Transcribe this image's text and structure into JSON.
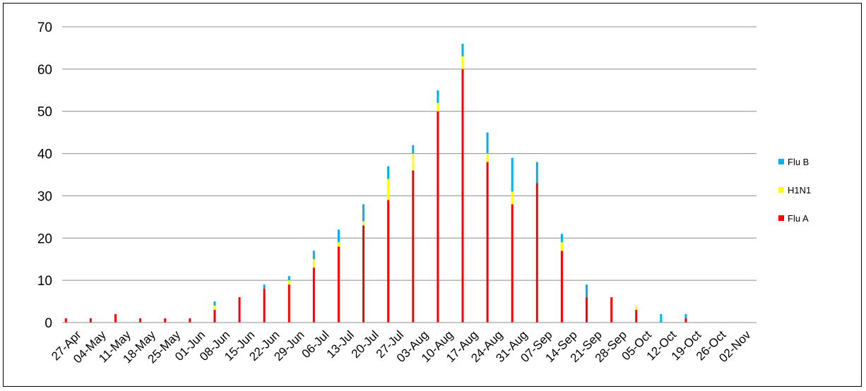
{
  "chart_data": {
    "type": "bar",
    "stacked": true,
    "categories": [
      "27-Apr",
      "04-May",
      "11-May",
      "18-May",
      "25-May",
      "01-Jun",
      "08-Jun",
      "15-Jun",
      "22-Jun",
      "29-Jun",
      "06-Jul",
      "13-Jul",
      "20-Jul",
      "27-Jul",
      "03-Aug",
      "10-Aug",
      "17-Aug",
      "24-Aug",
      "31-Aug",
      "07-Sep",
      "14-Sep",
      "21-Sep",
      "28-Sep",
      "05-Oct",
      "12-Oct",
      "19-Oct",
      "26-Oct",
      "02-Nov"
    ],
    "series": [
      {
        "name": "Flu A",
        "color": "#ff0000",
        "values": [
          1,
          1,
          2,
          1,
          1,
          1,
          3,
          6,
          8,
          9,
          13,
          18,
          23,
          29,
          36,
          50,
          60,
          38,
          28,
          33,
          17,
          6,
          6,
          3,
          0,
          1,
          0,
          0
        ]
      },
      {
        "name": "H1N1",
        "color": "#ffff00",
        "values": [
          0,
          0,
          0,
          0,
          0,
          0,
          1,
          0,
          0,
          1,
          2,
          1,
          1,
          5,
          4,
          2,
          3,
          2,
          3,
          0,
          2,
          0,
          0,
          1,
          0,
          0,
          0,
          0
        ]
      },
      {
        "name": "Flu B",
        "color": "#00b0f0",
        "values": [
          0,
          0,
          0,
          0,
          0,
          0,
          1,
          0,
          1,
          1,
          2,
          3,
          4,
          3,
          2,
          3,
          3,
          5,
          8,
          5,
          2,
          3,
          0,
          0,
          2,
          1,
          0,
          0
        ]
      }
    ],
    "legend_order": [
      "Flu B",
      "H1N1",
      "Flu A"
    ],
    "ylim": [
      0,
      70
    ],
    "yticks": [
      0,
      10,
      20,
      30,
      40,
      50,
      60,
      70
    ],
    "grid": true,
    "legend_position": "right",
    "title": "",
    "xlabel": "",
    "ylabel": ""
  }
}
